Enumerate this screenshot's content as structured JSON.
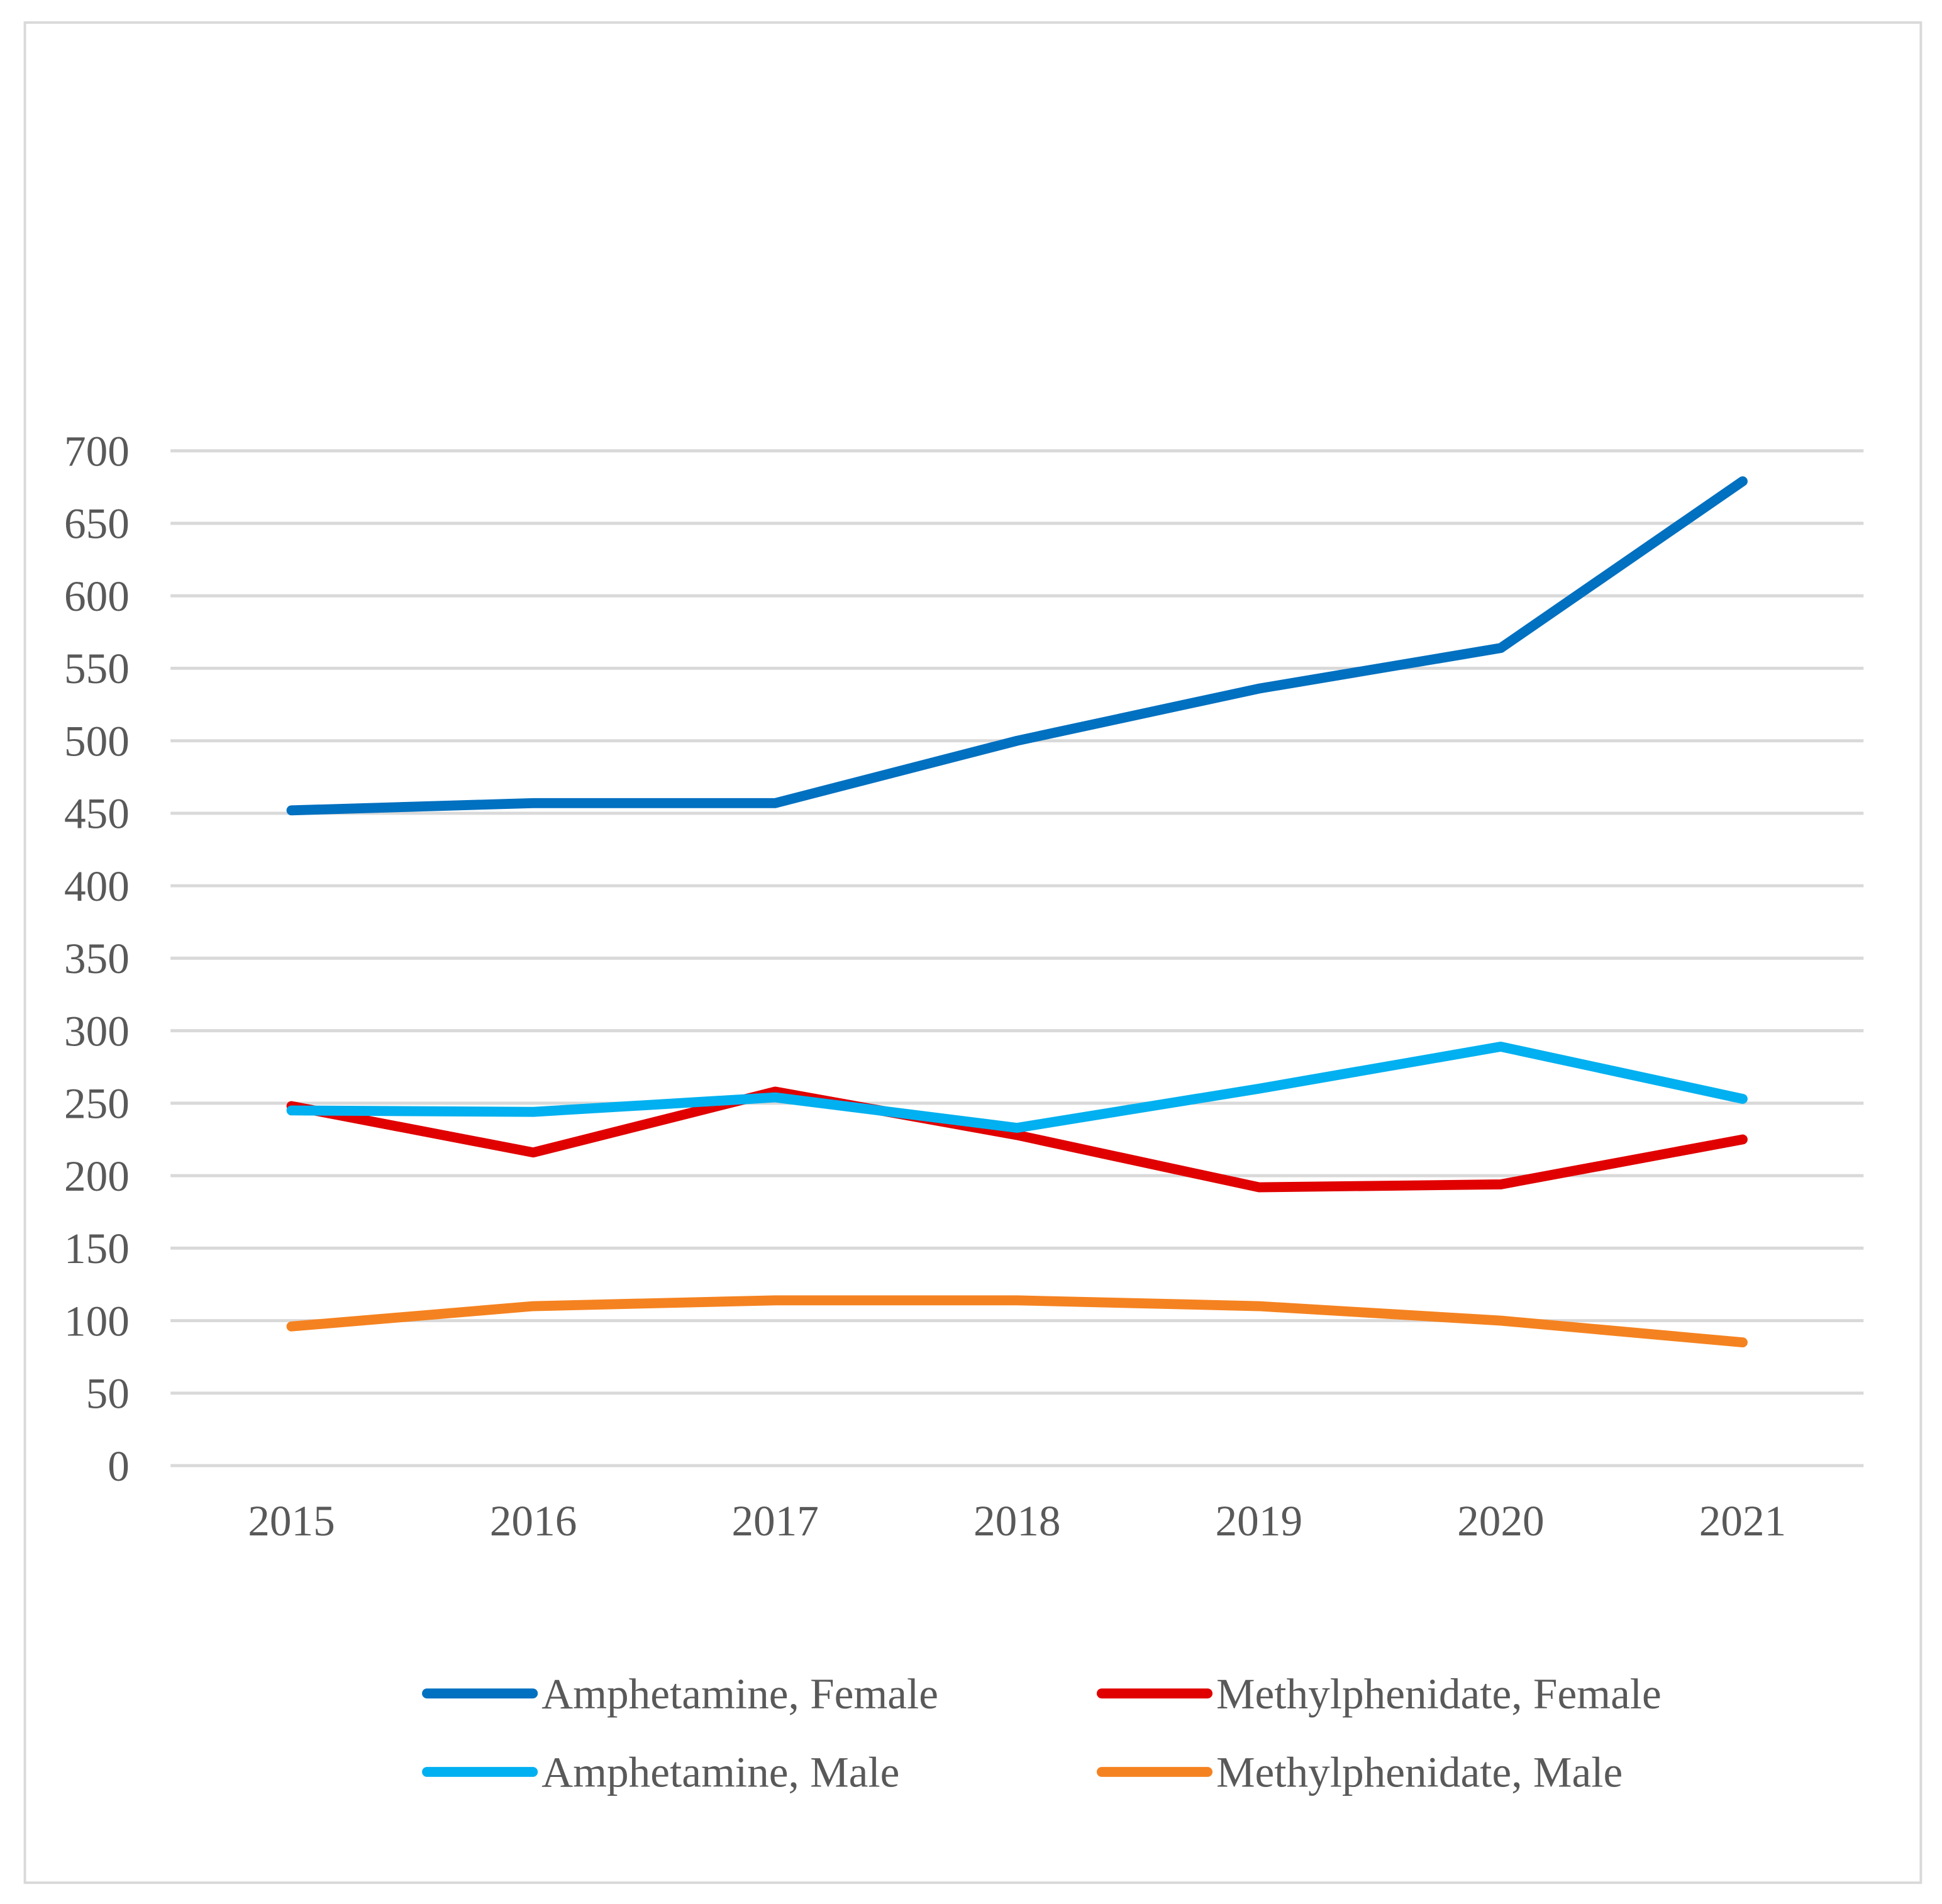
{
  "chart_data": {
    "type": "line",
    "title": "",
    "xlabel": "",
    "ylabel": "",
    "categories": [
      "2015",
      "2016",
      "2017",
      "2018",
      "2019",
      "2020",
      "2021"
    ],
    "ylim": [
      0,
      700
    ],
    "yticks": [
      0,
      50,
      100,
      150,
      200,
      250,
      300,
      350,
      400,
      450,
      500,
      550,
      600,
      650,
      700
    ],
    "grid": "horizontal",
    "legend_position": "bottom",
    "series": [
      {
        "name": "Amphetamine, Female",
        "color": "#0070C0",
        "values": [
          452,
          457,
          457,
          500,
          536,
          564,
          679
        ]
      },
      {
        "name": "Methylphenidate, Female",
        "color": "#E00000",
        "values": [
          248,
          216,
          258,
          228,
          192,
          194,
          225
        ]
      },
      {
        "name": "Amphetamine, Male",
        "color": "#00B0F0",
        "values": [
          245,
          244,
          254,
          233,
          260,
          289,
          253
        ]
      },
      {
        "name": "Methylphenidate, Male",
        "color": "#F58220",
        "values": [
          96,
          110,
          114,
          114,
          110,
          100,
          85
        ]
      }
    ]
  }
}
